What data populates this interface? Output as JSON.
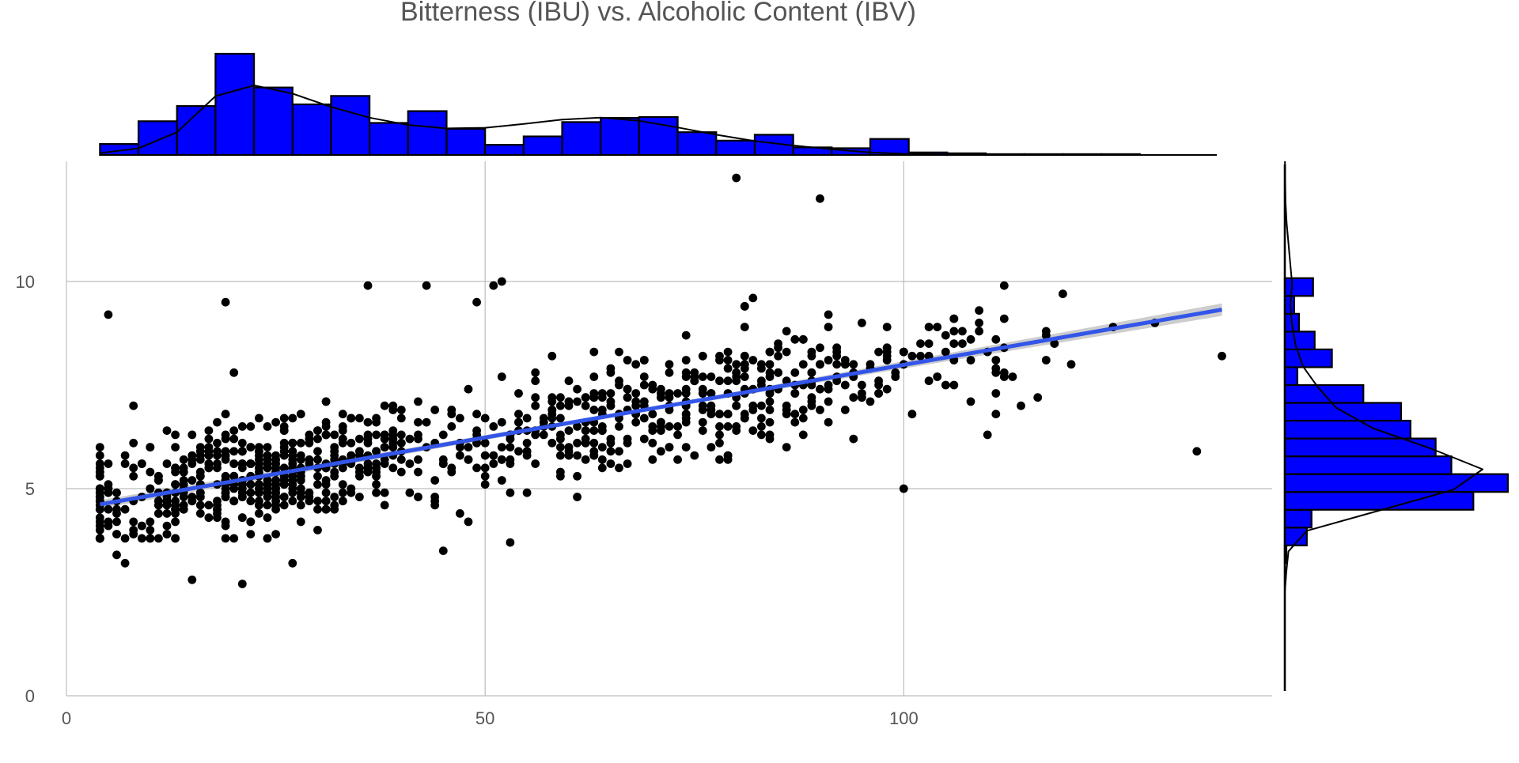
{
  "chart_data": {
    "type": "scatter",
    "title": "Bitterness (IBU) vs. Alcoholic Content (IBV)",
    "xlabel": "",
    "ylabel": "",
    "xlim": [
      0,
      144
    ],
    "ylim": [
      0,
      12.9
    ],
    "x_ticks": [
      0,
      50,
      100
    ],
    "y_ticks": [
      0,
      5,
      10
    ],
    "grid": true,
    "colors": {
      "points": "#000000",
      "trend_line": "#3355e8",
      "confidence_band": "#c8c8c8",
      "histogram_fill": "#0000ff",
      "histogram_outline": "#000000",
      "density_line": "#000000",
      "grid": "#bdbdbd"
    },
    "point_count": 1010,
    "outliers": [
      {
        "x": 4,
        "y": 5.6
      },
      {
        "x": 5,
        "y": 9.2
      },
      {
        "x": 6,
        "y": 3.4
      },
      {
        "x": 7,
        "y": 3.2
      },
      {
        "x": 9,
        "y": 5.6
      },
      {
        "x": 15,
        "y": 2.8
      },
      {
        "x": 19,
        "y": 9.5
      },
      {
        "x": 21,
        "y": 2.7
      },
      {
        "x": 27,
        "y": 3.2
      },
      {
        "x": 36,
        "y": 9.9
      },
      {
        "x": 43,
        "y": 9.9
      },
      {
        "x": 45,
        "y": 3.5
      },
      {
        "x": 49,
        "y": 9.5
      },
      {
        "x": 51,
        "y": 9.9
      },
      {
        "x": 52,
        "y": 10.0
      },
      {
        "x": 53,
        "y": 3.7
      },
      {
        "x": 80,
        "y": 12.5
      },
      {
        "x": 90,
        "y": 12.0
      },
      {
        "x": 100,
        "y": 5.0
      },
      {
        "x": 107,
        "y": 8.8
      },
      {
        "x": 111,
        "y": 6.8
      },
      {
        "x": 112,
        "y": 9.9
      },
      {
        "x": 114,
        "y": 7.0
      },
      {
        "x": 119,
        "y": 9.7
      },
      {
        "x": 120,
        "y": 8.0
      },
      {
        "x": 125,
        "y": 8.9
      },
      {
        "x": 130,
        "y": 9.0
      },
      {
        "x": 135,
        "y": 5.9
      },
      {
        "x": 138,
        "y": 8.2
      }
    ],
    "trend_line": {
      "x": [
        4,
        138
      ],
      "y": [
        4.62,
        9.32
      ]
    },
    "confidence_band": {
      "x": [
        4,
        71,
        138
      ],
      "lower": [
        4.52,
        6.93,
        9.17
      ],
      "upper": [
        4.72,
        7.01,
        9.47
      ]
    },
    "marginal_x_histogram": {
      "bin_start": 4,
      "bin_width": 4.6,
      "counts": [
        13,
        40,
        58,
        120,
        80,
        60,
        70,
        38,
        52,
        31,
        12,
        22,
        39,
        44,
        45,
        27,
        17,
        24,
        9,
        8,
        19,
        3,
        2,
        1,
        1,
        1,
        1,
        0,
        0
      ],
      "density": [
        0.0006,
        0.0021,
        0.0072,
        0.0186,
        0.022,
        0.0194,
        0.0152,
        0.0118,
        0.0095,
        0.0084,
        0.0086,
        0.0098,
        0.0112,
        0.0118,
        0.0108,
        0.0087,
        0.0064,
        0.0044,
        0.003,
        0.0018,
        0.0008,
        0.0003,
        0.0002,
        0.0002,
        0.0001,
        0.0001,
        0.0001,
        0.0,
        0.0,
        0.0
      ]
    },
    "marginal_y_histogram": {
      "bin_start": 3.2,
      "bin_width": 0.43,
      "counts": [
        5,
        70,
        85,
        600,
        710,
        530,
        480,
        400,
        370,
        250,
        40,
        150,
        95,
        45,
        30,
        90
      ],
      "density": [
        0.0,
        0.0,
        0.004,
        0.01,
        0.06,
        0.26,
        0.46,
        0.54,
        0.4,
        0.24,
        0.14,
        0.09,
        0.05,
        0.03,
        0.02,
        0.015,
        0.02,
        0.015,
        0.01,
        0.005,
        0.002,
        0.001,
        0.0005
      ]
    }
  }
}
